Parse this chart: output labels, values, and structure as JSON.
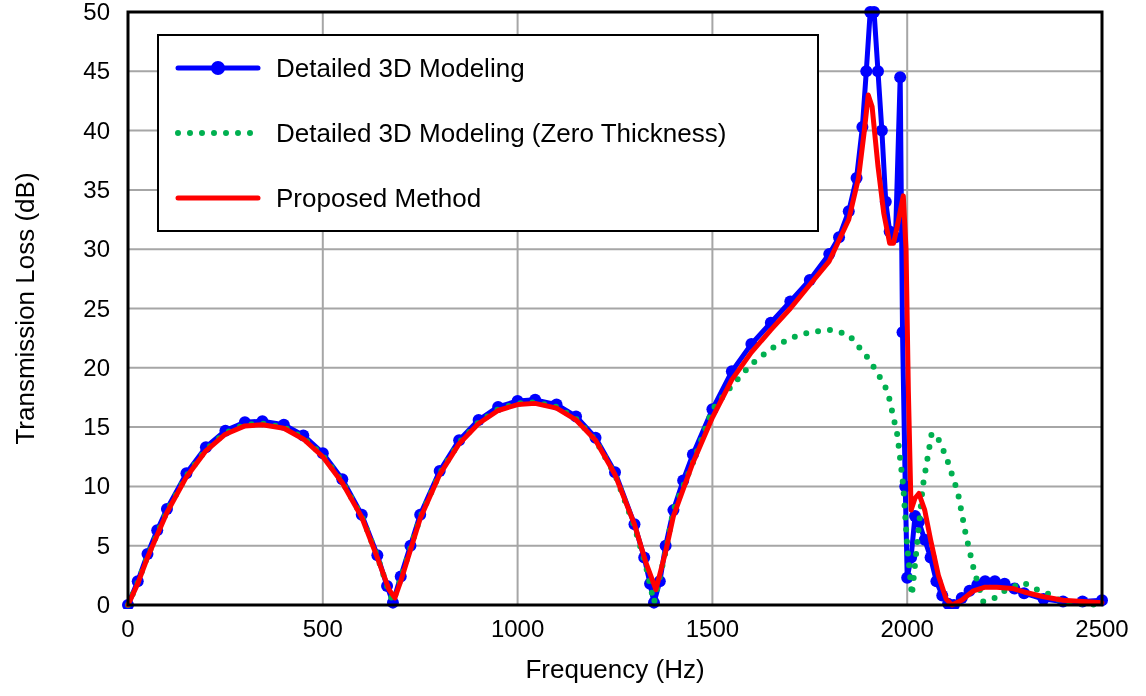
{
  "chart_data": {
    "type": "line",
    "xlabel": "Frequency (Hz)",
    "ylabel": "Transmission Loss (dB)",
    "xlim": [
      0,
      2500
    ],
    "xticks": [
      0,
      500,
      1000,
      1500,
      2000,
      2500
    ],
    "ylim": [
      0,
      50
    ],
    "yticks": [
      0,
      5,
      10,
      15,
      20,
      25,
      30,
      35,
      40,
      45,
      50
    ],
    "grid": true,
    "legend": "top left",
    "series": [
      {
        "name": "Detailed 3D Modeling",
        "color": "#0000ff",
        "marker": "circle",
        "line_style": "solid",
        "x": [
          0,
          25,
          50,
          75,
          100,
          150,
          200,
          250,
          300,
          345,
          400,
          450,
          500,
          550,
          600,
          640,
          665,
          680,
          700,
          725,
          750,
          800,
          850,
          900,
          950,
          1000,
          1045,
          1100,
          1150,
          1200,
          1250,
          1300,
          1325,
          1340,
          1350,
          1365,
          1380,
          1400,
          1425,
          1450,
          1500,
          1550,
          1600,
          1650,
          1700,
          1750,
          1800,
          1825,
          1850,
          1870,
          1885,
          1895,
          1905,
          1915,
          1925,
          1935,
          1945,
          1955,
          1970,
          1982,
          1988,
          1995,
          2000,
          2010,
          2020,
          2030,
          2045,
          2060,
          2075,
          2090,
          2105,
          2120,
          2140,
          2160,
          2180,
          2200,
          2225,
          2250,
          2275,
          2300,
          2350,
          2400,
          2450,
          2500
        ],
        "values": [
          0,
          2,
          4.3,
          6.3,
          8.1,
          11.1,
          13.3,
          14.7,
          15.4,
          15.5,
          15.2,
          14.3,
          12.8,
          10.6,
          7.6,
          4.2,
          1.6,
          0.2,
          2.4,
          5,
          7.6,
          11.3,
          13.9,
          15.6,
          16.7,
          17.2,
          17.3,
          16.9,
          15.9,
          14.1,
          11.2,
          6.8,
          4,
          1.8,
          0.2,
          2,
          5,
          8,
          10.5,
          12.7,
          16.5,
          19.7,
          22,
          23.8,
          25.6,
          27.4,
          29.6,
          31,
          33.2,
          36,
          40.3,
          45,
          50,
          50,
          45,
          40,
          34,
          31.5,
          31,
          44.5,
          23,
          10,
          2.3,
          4,
          7.5,
          7,
          5.5,
          4,
          2,
          0.8,
          0.1,
          0,
          0.6,
          1.2,
          1.7,
          2,
          2,
          1.8,
          1.4,
          1,
          0.5,
          0.3,
          0.3,
          0.4
        ]
      },
      {
        "name": "Detailed 3D Modeling (Zero Thickness)",
        "color": "#00b050",
        "marker": "none",
        "line_style": "dotted",
        "x": [
          0,
          25,
          50,
          100,
          150,
          200,
          250,
          300,
          345,
          400,
          450,
          500,
          550,
          600,
          640,
          670,
          680,
          700,
          750,
          800,
          850,
          900,
          950,
          1000,
          1045,
          1100,
          1150,
          1200,
          1250,
          1300,
          1330,
          1350,
          1380,
          1400,
          1450,
          1500,
          1550,
          1600,
          1650,
          1700,
          1750,
          1800,
          1850,
          1900,
          1925,
          1950,
          1975,
          1990,
          2000,
          2012,
          2025,
          2040,
          2063,
          2080,
          2100,
          2130,
          2150,
          2171,
          2195,
          2220,
          2250,
          2297,
          2340,
          2374,
          2400,
          2450,
          2500
        ],
        "values": [
          0,
          1.9,
          4.1,
          7.9,
          10.9,
          13.1,
          14.5,
          15.2,
          15.3,
          15,
          14.1,
          12.6,
          10.4,
          7.5,
          4.1,
          1.1,
          0.3,
          2.2,
          7.4,
          11.1,
          13.7,
          15.4,
          16.5,
          17,
          17.1,
          16.7,
          15.7,
          13.9,
          11,
          6.6,
          3.2,
          0.2,
          4.5,
          8,
          12,
          16.5,
          18.5,
          20.3,
          21.6,
          22.5,
          23,
          23.2,
          22.8,
          20.8,
          19.5,
          18,
          14.3,
          10,
          5,
          0.8,
          5,
          10,
          14.5,
          14,
          12.5,
          9.5,
          6,
          3,
          0.3,
          0.5,
          1.2,
          1.9,
          1.2,
          0.8,
          0.2,
          0.1,
          0
        ]
      },
      {
        "name": "Proposed Method",
        "color": "#ff0000",
        "marker": "none",
        "line_style": "solid",
        "x": [
          0,
          25,
          50,
          100,
          150,
          200,
          250,
          300,
          345,
          400,
          450,
          500,
          550,
          600,
          640,
          670,
          685,
          700,
          750,
          800,
          850,
          900,
          950,
          1000,
          1045,
          1100,
          1150,
          1200,
          1250,
          1300,
          1330,
          1355,
          1380,
          1400,
          1450,
          1500,
          1550,
          1600,
          1650,
          1700,
          1750,
          1800,
          1850,
          1875,
          1890,
          1900,
          1910,
          1925,
          1940,
          1955,
          1965,
          1975,
          1990,
          1997,
          2003,
          2010,
          2020,
          2030,
          2045,
          2060,
          2080,
          2100,
          2115,
          2140,
          2170,
          2200,
          2230,
          2270,
          2300,
          2350,
          2400,
          2450,
          2500
        ],
        "values": [
          0,
          1.8,
          4,
          7.8,
          10.8,
          13,
          14.4,
          15.1,
          15.2,
          14.9,
          14,
          12.5,
          10.3,
          7.4,
          4,
          1.3,
          0.6,
          2,
          7.3,
          11,
          13.6,
          15.3,
          16.4,
          16.9,
          17,
          16.6,
          15.6,
          13.9,
          11,
          6.8,
          3.5,
          1.3,
          4.5,
          7.5,
          12,
          15.8,
          19,
          21.3,
          23.2,
          25,
          27,
          29,
          32.5,
          36,
          40,
          43,
          42,
          37,
          33,
          30.5,
          30.5,
          32,
          34.5,
          30,
          18,
          8,
          9,
          9.4,
          8,
          5.5,
          2.5,
          0.5,
          0,
          0.4,
          1.2,
          1.5,
          1.5,
          1.4,
          1.1,
          0.7,
          0.4,
          0.3,
          0.2
        ]
      }
    ]
  }
}
